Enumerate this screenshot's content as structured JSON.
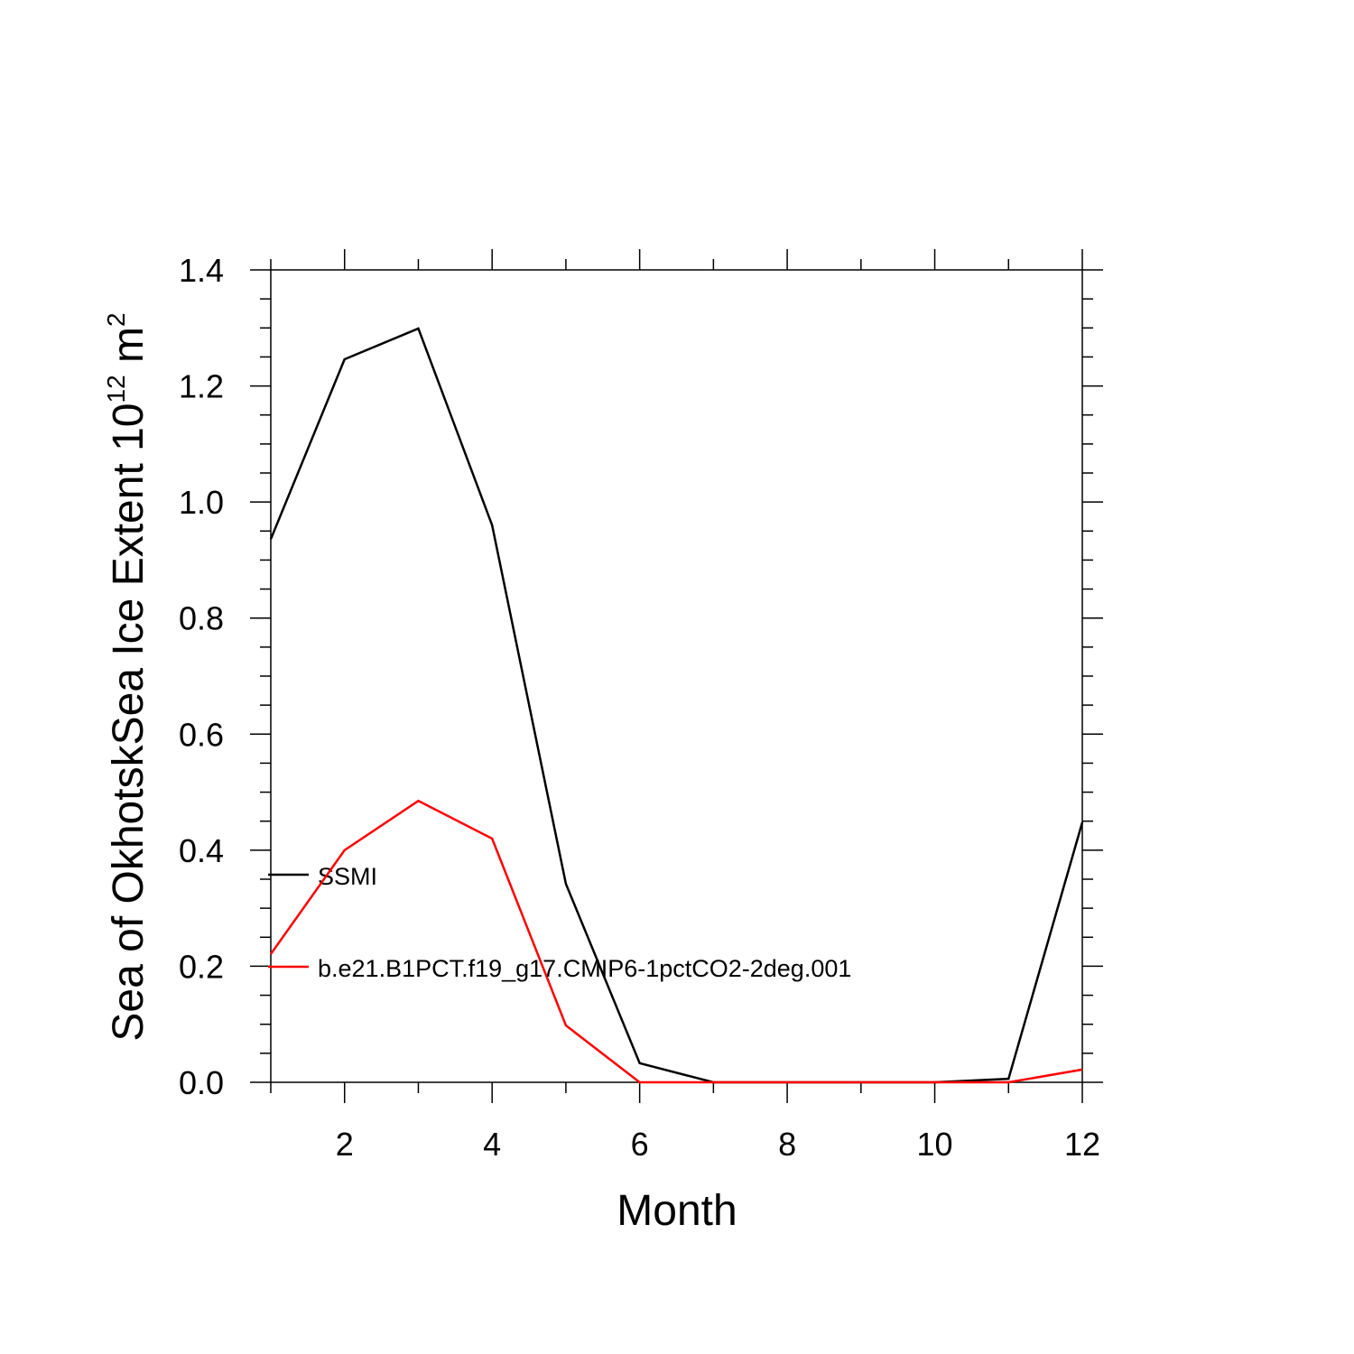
{
  "chart_data": {
    "type": "line",
    "ylabel": {
      "text": "Sea of OkhotskSea Ice Extent 10",
      "exponent": "12",
      "unit": " m",
      "unit_exponent": "2"
    },
    "xlabel": "Month",
    "x": [
      1,
      2,
      3,
      4,
      5,
      6,
      7,
      8,
      9,
      10,
      11,
      12
    ],
    "series": [
      {
        "name": "SSMI",
        "color": "#000000",
        "values": [
          0.936,
          1.246,
          1.299,
          0.96,
          0.342,
          0.033,
          0,
          0,
          0,
          0,
          0.006,
          0.448
        ]
      },
      {
        "name": "b.e21.B1PCT.f19_g17.CMIP6-1pctCO2-2deg.001",
        "color": "#ff0000",
        "values": [
          0.221,
          0.4,
          0.485,
          0.42,
          0.098,
          0,
          0,
          0,
          0,
          0,
          0,
          0.022
        ]
      }
    ],
    "xlim": [
      1,
      12
    ],
    "xticks": [
      2,
      4,
      6,
      8,
      10,
      12
    ],
    "xminorticks": [
      1,
      3,
      5,
      7,
      9,
      11
    ],
    "ylim": [
      0,
      1.4
    ],
    "yticks": [
      {
        "value": 0,
        "label": "0.0"
      },
      0.2,
      0.4,
      0.6,
      0.8,
      {
        "value": 1,
        "label": "1.0"
      },
      1.2,
      1.4
    ],
    "yminorticks": [
      0.05,
      0.1,
      0.15,
      0.25,
      0.3,
      0.35,
      0.45,
      0.5,
      0.55,
      0.65,
      0.7,
      0.75,
      0.85,
      0.9,
      0.95,
      1.05,
      1.1,
      1.15,
      1.25,
      1.3,
      1.35
    ],
    "grid": false
  }
}
